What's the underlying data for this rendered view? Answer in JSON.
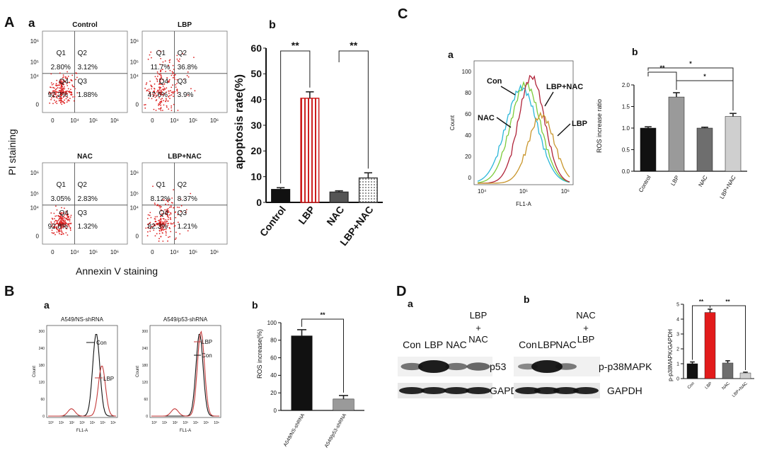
{
  "panel_A": {
    "label": "A",
    "sub_a": "a",
    "sub_b": "b",
    "flow_plots": [
      {
        "title": "Control",
        "Q1": "Q1",
        "Q2": "Q2",
        "Q3": "Q3",
        "Q4": "Q4",
        "q1_val": "2.80%",
        "q2_val": "3.12%",
        "q3_val": "1.88%",
        "q4_val": "92.2%"
      },
      {
        "title": "LBP",
        "Q1": "Q1",
        "Q2": "Q2",
        "Q3": "Q3",
        "Q4": "Q4",
        "q1_val": "11.7%",
        "q2_val": "36.8%",
        "q3_val": "3.9%",
        "q4_val": "47.6%"
      },
      {
        "title": "NAC",
        "Q1": "Q1",
        "Q2": "Q2",
        "Q3": "Q3",
        "Q4": "Q4",
        "q1_val": "3.05%",
        "q2_val": "2.83%",
        "q3_val": "1.32%",
        "q4_val": "92.8%"
      },
      {
        "title": "LBP+NAC",
        "Q1": "Q1",
        "Q2": "Q2",
        "Q3": "Q3",
        "Q4": "Q4",
        "q1_val": "8.12%",
        "q2_val": "8.37%",
        "q3_val": "1.21%",
        "q4_val": "82.3%"
      }
    ],
    "y_ticks": [
      "10⁶",
      "10⁵",
      "10⁴",
      "0"
    ],
    "x_ticks": [
      "0",
      "10⁴",
      "10⁵",
      "10⁶"
    ],
    "ylabel": "PI staining",
    "xlabel": "Annexin V staining",
    "sig_marks": [
      "**",
      "**"
    ]
  },
  "panel_B": {
    "label": "B",
    "sub_a": "a",
    "sub_b": "b",
    "hist1": {
      "title": "A549/NS-shRNA",
      "legend_con": "Con",
      "legend_lbp": "LBP",
      "ylabel": "Count",
      "xlabel": "FL1-A",
      "y_ticks": [
        "300",
        "240",
        "180",
        "120",
        "60",
        "0"
      ],
      "x_ticks": [
        "10⁰",
        "10¹",
        "10²",
        "10³",
        "10⁴",
        "10⁵",
        "10⁶"
      ]
    },
    "hist2": {
      "title": "A549/p53-shRNA",
      "legend_con": "Con",
      "legend_lbp": "LBP",
      "ylabel": "Count",
      "xlabel": "FL1-A",
      "y_ticks": [
        "300",
        "240",
        "180",
        "120",
        "60",
        "0"
      ],
      "x_ticks": [
        "10⁰",
        "10¹",
        "10²",
        "10³",
        "10⁴",
        "10⁵",
        "10⁶"
      ]
    },
    "sig_mark": "**"
  },
  "panel_C": {
    "label": "C",
    "sub_a": "a",
    "sub_b": "b",
    "hist": {
      "ylabel": "Count",
      "xlabel": "FL1-A",
      "y_ticks": [
        "100",
        "80",
        "60",
        "40",
        "20",
        "0"
      ],
      "x_ticks": [
        "10⁴",
        "10⁵",
        "10⁶"
      ],
      "labels": {
        "con": "Con",
        "nac": "NAC",
        "lbp_nac": "LBP+NAC",
        "lbp": "LBP"
      }
    },
    "sig_marks": [
      "**",
      "*",
      "*"
    ]
  },
  "panel_D": {
    "label": "D",
    "sub_a": "a",
    "sub_b": "b",
    "blot_a": {
      "lanes": [
        "Con",
        "LBP",
        "NAC"
      ],
      "lane4_top": "LBP",
      "lane4_mid": "+",
      "lane4_bot": "NAC",
      "band1": "p53",
      "band2": "GAPDH"
    },
    "blot_b": {
      "lanes": [
        "Con",
        "LBP",
        "NAC"
      ],
      "lane4_top": "NAC",
      "lane4_mid": "+",
      "lane4_bot": "LBP",
      "band1": "p-p38MAPK",
      "band2": "GAPDH"
    },
    "sig_marks": [
      "**",
      "**"
    ]
  },
  "chart_data": [
    {
      "id": "A_b",
      "type": "bar",
      "title": "",
      "categories": [
        "Control",
        "LBP",
        "NAC",
        "LBP+NAC"
      ],
      "values": [
        5,
        40.5,
        4,
        9.5
      ],
      "errors": [
        0.7,
        2.5,
        0.5,
        2.0
      ],
      "ylabel": "apoptosis rate(%)",
      "xlabel": "",
      "ylim": [
        0,
        60
      ],
      "yticks": [
        0,
        10,
        20,
        30,
        40,
        50,
        60
      ],
      "colors": [
        "#111111",
        "#cc1f1f",
        "#555555",
        "#bdbdbd"
      ]
    },
    {
      "id": "B_b",
      "type": "bar",
      "title": "",
      "categories": [
        "A549/NS-shRNA",
        "A549/p53-shRNA"
      ],
      "values": [
        85,
        13
      ],
      "errors": [
        7,
        4
      ],
      "ylabel": "ROS increase(%)",
      "xlabel": "",
      "ylim": [
        0,
        100
      ],
      "yticks": [
        0,
        20,
        40,
        60,
        80,
        100
      ],
      "colors": [
        "#111111",
        "#9a9a9a"
      ]
    },
    {
      "id": "C_b",
      "type": "bar",
      "title": "",
      "categories": [
        "Control",
        "LBP",
        "NAC",
        "LBP+NAC"
      ],
      "values": [
        1.0,
        1.72,
        1.0,
        1.27
      ],
      "errors": [
        0.03,
        0.1,
        0.02,
        0.07
      ],
      "ylabel": "ROS increase ratio",
      "xlabel": "",
      "ylim": [
        0,
        2.0
      ],
      "yticks": [
        0,
        0.5,
        1.0,
        1.5,
        2.0
      ],
      "ytick_labels": [
        "0.0",
        "0.5",
        "1.0",
        "1.5",
        "2.0"
      ],
      "colors": [
        "#111111",
        "#9a9a9a",
        "#6e6e6e",
        "#cfcfcf"
      ]
    },
    {
      "id": "D_b",
      "type": "bar",
      "title": "",
      "categories": [
        "Con",
        "LBP",
        "NAC",
        "LBP+NAC"
      ],
      "values": [
        1.0,
        4.45,
        1.05,
        0.38
      ],
      "errors": [
        0.12,
        0.22,
        0.15,
        0.05
      ],
      "ylabel": "p-p38MAPK/GAPDH",
      "xlabel": "",
      "ylim": [
        0,
        5
      ],
      "yticks": [
        0,
        1,
        2,
        3,
        4,
        5
      ],
      "colors": [
        "#111111",
        "#e21b1b",
        "#6e6e6e",
        "#cfcfcf"
      ]
    }
  ]
}
